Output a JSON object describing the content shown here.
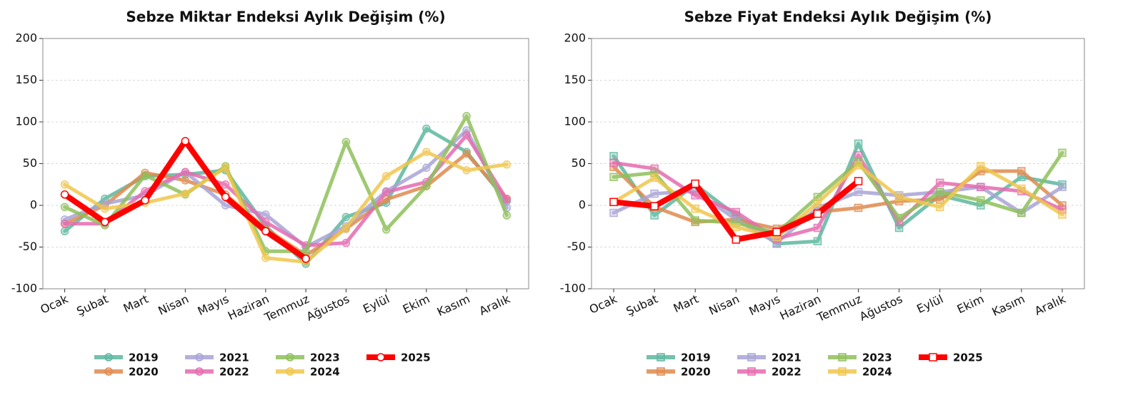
{
  "chart_data": [
    {
      "type": "line",
      "marker": "circle",
      "title": "Sebze Miktar Endeksi Aylık Değişim (%)",
      "categories": [
        "Ocak",
        "Şubat",
        "Mart",
        "Nisan",
        "Mayıs",
        "Haziran",
        "Temmuz",
        "Ağustos",
        "Eylül",
        "Ekim",
        "Kasım",
        "Aralık"
      ],
      "ylim": [
        -100,
        200
      ],
      "yticks": [
        -100,
        -50,
        0,
        50,
        100,
        150,
        200
      ],
      "grid": true,
      "series": [
        {
          "name": "2019",
          "color": "#5cb89f",
          "values": [
            -31,
            8,
            35,
            37,
            42,
            -25,
            -70,
            -14,
            3,
            92,
            64,
            5
          ]
        },
        {
          "name": "2020",
          "color": "#e08a4e",
          "values": [
            -22,
            0,
            39,
            30,
            13,
            -28,
            -60,
            -28,
            7,
            23,
            62,
            8
          ]
        },
        {
          "name": "2021",
          "color": "#a9a4d6",
          "values": [
            -17,
            2,
            12,
            40,
            0,
            -11,
            -50,
            -25,
            17,
            45,
            90,
            -3
          ]
        },
        {
          "name": "2022",
          "color": "#e66bb0",
          "values": [
            -22,
            -22,
            17,
            40,
            25,
            -20,
            -48,
            -45,
            16,
            28,
            84,
            7
          ]
        },
        {
          "name": "2023",
          "color": "#8fc05b",
          "values": [
            -2,
            -24,
            36,
            13,
            47,
            -55,
            -55,
            76,
            -29,
            23,
            107,
            -12
          ]
        },
        {
          "name": "2024",
          "color": "#f0c64d",
          "values": [
            25,
            -4,
            3,
            14,
            45,
            -63,
            -68,
            -27,
            35,
            64,
            42,
            49
          ]
        },
        {
          "name": "2025",
          "color": "#ff0000",
          "values": [
            13,
            -20,
            6,
            77,
            10,
            -31,
            -64,
            null,
            null,
            null,
            null,
            null
          ]
        }
      ]
    },
    {
      "type": "line",
      "marker": "square",
      "title": "Sebze Fiyat Endeksi Aylık Değişim (%)",
      "categories": [
        "Ocak",
        "Şubat",
        "Mart",
        "Nisan",
        "Mayıs",
        "Haziran",
        "Temmuz",
        "Ağustos",
        "Eylül",
        "Ekim",
        "Kasım",
        "Aralık"
      ],
      "ylim": [
        -100,
        200
      ],
      "yticks": [
        -100,
        -50,
        0,
        50,
        100,
        150,
        200
      ],
      "grid": true,
      "series": [
        {
          "name": "2019",
          "color": "#5cb89f",
          "values": [
            59,
            -12,
            25,
            -12,
            -46,
            -43,
            74,
            -27,
            12,
            0,
            34,
            25
          ]
        },
        {
          "name": "2020",
          "color": "#e08a4e",
          "values": [
            46,
            -2,
            -20,
            -17,
            -28,
            -8,
            -3,
            5,
            7,
            41,
            41,
            0
          ]
        },
        {
          "name": "2021",
          "color": "#a9a4d6",
          "values": [
            -9,
            14,
            17,
            -17,
            -45,
            -3,
            16,
            12,
            16,
            22,
            -9,
            22
          ]
        },
        {
          "name": "2022",
          "color": "#e66bb0",
          "values": [
            51,
            44,
            12,
            -8,
            -40,
            -27,
            60,
            -20,
            27,
            22,
            17,
            -5
          ]
        },
        {
          "name": "2023",
          "color": "#8fc05b",
          "values": [
            34,
            39,
            -18,
            -21,
            -33,
            10,
            52,
            -15,
            16,
            6,
            -9,
            63
          ]
        },
        {
          "name": "2024",
          "color": "#f0c64d",
          "values": [
            4,
            33,
            -4,
            -26,
            -38,
            3,
            48,
            10,
            -2,
            47,
            20,
            -11
          ]
        },
        {
          "name": "2025",
          "color": "#ff0000",
          "values": [
            4,
            -1,
            26,
            -41,
            -32,
            -10,
            29,
            null,
            null,
            null,
            null,
            null
          ]
        }
      ]
    }
  ]
}
